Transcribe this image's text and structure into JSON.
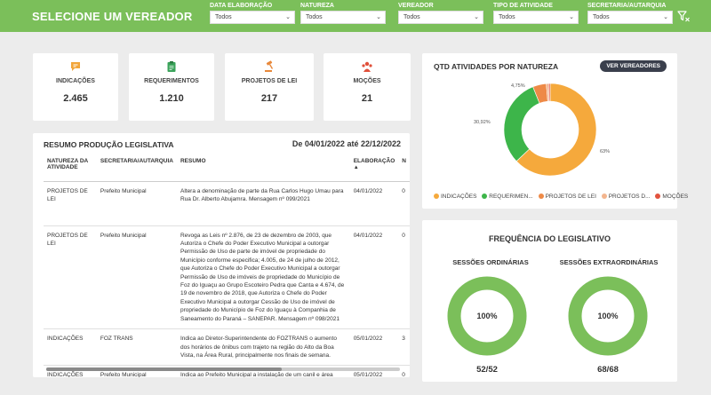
{
  "header": {
    "title": "SELECIONE UM VEREADOR",
    "filters": [
      {
        "label": "DATA ELABORAÇÃO",
        "value": "Todos"
      },
      {
        "label": "NATUREZA",
        "value": "Todos"
      },
      {
        "label": "VEREADOR",
        "value": "Todos"
      },
      {
        "label": "TIPO DE ATIVIDADE",
        "value": "Todos"
      },
      {
        "label": "SECRETARIA/AUTARQUIA",
        "value": "Todos"
      }
    ]
  },
  "kpis": [
    {
      "label": "INDICAÇÕES",
      "value": "2.465",
      "icon": "speech-bubble-icon",
      "color": "#f2a53a"
    },
    {
      "label": "REQUERIMENTOS",
      "value": "1.210",
      "icon": "clipboard-icon",
      "color": "#3aa35a"
    },
    {
      "label": "PROJETOS DE LEI",
      "value": "217",
      "icon": "gavel-icon",
      "color": "#e8883a"
    },
    {
      "label": "MOÇÕES",
      "value": "21",
      "icon": "group-icon",
      "color": "#e0503a"
    }
  ],
  "table": {
    "title": "RESUMO PRODUÇÃO LEGISLATIVA",
    "daterange": "De 04/01/2022 até 22/12/2022",
    "columns": [
      "NATUREZA DA ATIVIDADE",
      "SECRETARIA/AUTARQUIA",
      "RESUMO",
      "ELABORAÇÃO",
      "N"
    ],
    "rows": [
      {
        "natureza": "PROJETOS DE LEI",
        "secretaria": "Prefeito Municipal",
        "resumo": "Altera a denominação de parte da Rua Carlos Hugo Umau para Rua Dr. Alberto Abujamra. Mensagem nº 099/2021",
        "data": "04/01/2022",
        "n": "0"
      },
      {
        "natureza": "PROJETOS DE LEI",
        "secretaria": "Prefeito Municipal",
        "resumo": "Revoga as Leis nº 2.876, de 23 de dezembro de 2003, que Autoriza o Chefe do Poder Executivo Municipal a outorgar Permissão de Uso de parte de imóvel de propriedade do Município conforme especifica; 4.005, de 24 de julho de 2012, que Autoriza o Chefe do Poder Executivo Municipal a outorgar Permissão de Uso de imóveis de propriedade do Município de Foz do Iguaçu ao Grupo Escoteiro Pedra que Canta e 4.674, de 19 de novembro de 2018, que Autoriza o Chefe do Poder Executivo Municipal a outorgar Cessão de Uso de imóvel de propriedade do Município de Foz do Iguaçu à Companhia de Saneamento do Paraná – SANEPAR. Mensagem nº 098/2021",
        "data": "04/01/2022",
        "n": "0"
      },
      {
        "natureza": "INDICAÇÕES",
        "secretaria": "FOZ TRANS",
        "resumo": "Indica ao Diretor-Superintendente do FOZTRANS o aumento dos horários de ônibus com trajeto na região do Alto da Boa Vista, na Área Rural, principalmente nos finais de semana.",
        "data": "05/01/2022",
        "n": "3"
      },
      {
        "natureza": "INDICAÇÕES",
        "secretaria": "Prefeito Municipal",
        "resumo": "Indica ao Prefeito Municipal a instalação de um canil e área",
        "data": "05/01/2022",
        "n": "0"
      }
    ]
  },
  "natureza_chart": {
    "title": "QTD ATIVIDADES POR NATUREZA",
    "button": "VER VEREADORES",
    "slice_labels": [
      "63%",
      "30,92%",
      "4,75%"
    ],
    "legend": [
      {
        "label": "INDICAÇÕES",
        "color": "#f5a93c"
      },
      {
        "label": "REQUERIMEN...",
        "color": "#3db54a"
      },
      {
        "label": "PROJETOS DE LEI",
        "color": "#ee8a47"
      },
      {
        "label": "PROJETOS D...",
        "color": "#f3b58e"
      },
      {
        "label": "MOÇÕES",
        "color": "#e2533e"
      }
    ]
  },
  "chart_data": {
    "type": "pie",
    "title": "QTD ATIVIDADES POR NATUREZA",
    "categories": [
      "INDICAÇÕES",
      "REQUERIMEN...",
      "PROJETOS DE LEI",
      "PROJETOS D...",
      "MOÇÕES"
    ],
    "values": [
      63,
      30.92,
      4.75,
      0.8,
      0.53
    ],
    "colors": [
      "#f5a93c",
      "#3db54a",
      "#ee8a47",
      "#f3b58e",
      "#e2533e"
    ],
    "legend_position": "bottom"
  },
  "frequencia": {
    "title": "FREQUÊNCIA DO LEGISLATIVO",
    "ordinarias": {
      "label": "SESSÕES ORDINÁRIAS",
      "percent": "100%",
      "count": "52/52",
      "fraction": 1.0
    },
    "extraordinarias": {
      "label": "SESSÕES EXTRAORDINÁRIAS",
      "percent": "100%",
      "count": "68/68",
      "fraction": 1.0
    },
    "ring_color": "#7bbf5a"
  }
}
